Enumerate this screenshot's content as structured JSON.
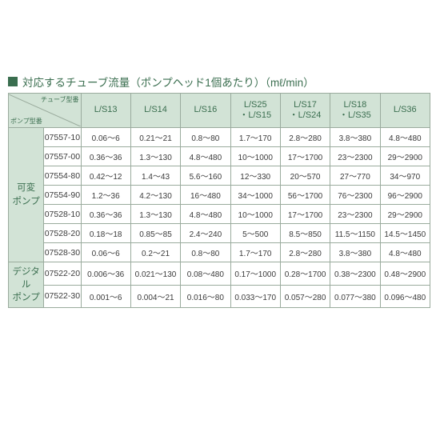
{
  "title": "対応するチューブ流量（ポンプヘッド1個あたり）（mℓ/min）",
  "diag": {
    "top": "チューブ型番",
    "bottom": "ポンプ型番"
  },
  "cols": [
    "L/S13",
    "L/S14",
    "L/S16",
    "L/S25\n・L/S15",
    "L/S17\n・L/S24",
    "L/S18\n・L/S35",
    "L/S36"
  ],
  "groups": [
    {
      "label": "可変\nポンプ",
      "rows": [
        {
          "m": "07557-10",
          "v": [
            "0.06～6",
            "0.21～21",
            "0.8～80",
            "1.7～170",
            "2.8～280",
            "3.8～380",
            "4.8～480"
          ]
        },
        {
          "m": "07557-00",
          "v": [
            "0.36～36",
            "1.3～130",
            "4.8～480",
            "10～1000",
            "17～1700",
            "23～2300",
            "29～2900"
          ]
        },
        {
          "m": "07554-80",
          "v": [
            "0.42～12",
            "1.4～43",
            "5.6～160",
            "12～330",
            "20～570",
            "27～770",
            "34～970"
          ]
        },
        {
          "m": "07554-90",
          "v": [
            "1.2～36",
            "4.2～130",
            "16～480",
            "34～1000",
            "56～1700",
            "76～2300",
            "96～2900"
          ]
        },
        {
          "m": "07528-10",
          "v": [
            "0.36～36",
            "1.3～130",
            "4.8～480",
            "10～1000",
            "17～1700",
            "23～2300",
            "29～2900"
          ]
        },
        {
          "m": "07528-20",
          "v": [
            "0.18～18",
            "0.85～85",
            "2.4～240",
            "5～500",
            "8.5～850",
            "11.5～1150",
            "14.5～1450"
          ]
        },
        {
          "m": "07528-30",
          "v": [
            "0.06～6",
            "0.2～21",
            "0.8～80",
            "1.7～170",
            "2.8～280",
            "3.8～380",
            "4.8～480"
          ]
        }
      ]
    },
    {
      "label": "デジタル\nポンプ",
      "rows": [
        {
          "m": "07522-20",
          "v": [
            "0.006～36",
            "0.021～130",
            "0.08～480",
            "0.17～1000",
            "0.28～1700",
            "0.38～2300",
            "0.48～2900"
          ]
        },
        {
          "m": "07522-30",
          "v": [
            "0.001～6",
            "0.004～21",
            "0.016～80",
            "0.033～170",
            "0.057～280",
            "0.077～380",
            "0.096～480"
          ]
        }
      ]
    }
  ]
}
